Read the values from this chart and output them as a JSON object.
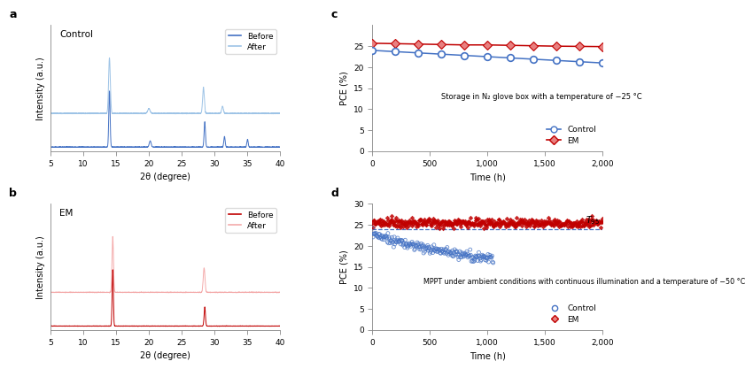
{
  "fig_width": 6.85,
  "fig_height": 4.05,
  "panel_a_label": "a",
  "panel_b_label": "b",
  "panel_c_label": "c",
  "panel_d_label": "d",
  "xrd_xlim": [
    5,
    40
  ],
  "xrd_xlabel": "2θ (degree)",
  "xrd_ylabel": "Intensity (a.u.)",
  "control_before_color": "#4472C4",
  "control_after_color": "#9DC3E6",
  "em_before_color": "#C00000",
  "em_after_color": "#F4AAAA",
  "pce_xlabel": "Time (h)",
  "pce_ylabel": "PCE (%)",
  "pce_xticks": [
    0,
    500,
    1000,
    1500,
    2000
  ],
  "pce_xtick_labels": [
    "0",
    "500",
    "1,000",
    "1,500",
    "2,000"
  ],
  "panel_c_annotation": "Storage in N₂ glove box with a temperature of −25 °C",
  "panel_d_annotation": "MPPT under ambient conditions with continuous illumination and a temperature of −50 °C",
  "control_color_line": "#4472C4",
  "em_color_line": "#C00000",
  "legend_control": "Control",
  "legend_em": "EM"
}
